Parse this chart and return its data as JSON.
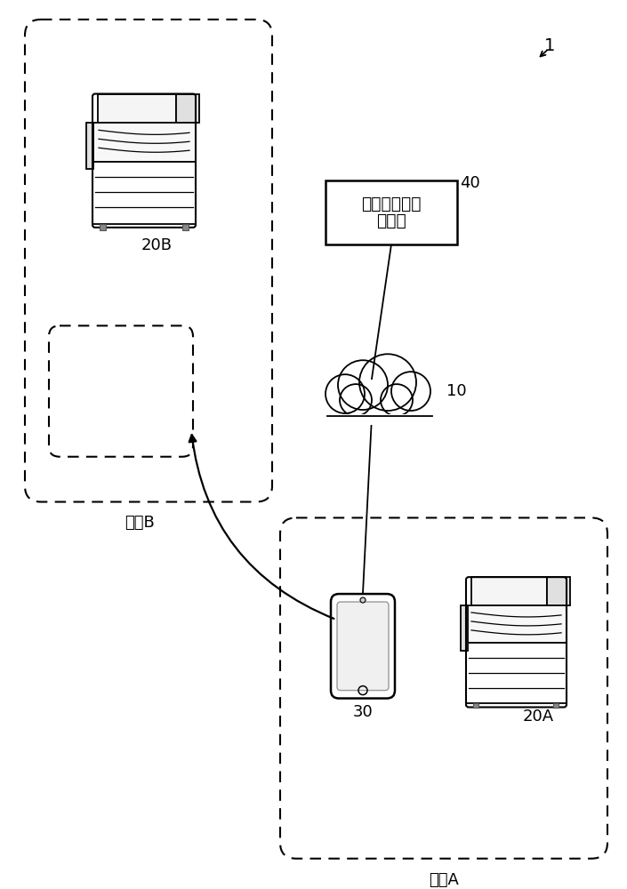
{
  "bg_color": "#ffffff",
  "fig_label": "1",
  "server_label": "40",
  "cloud_label": "10",
  "phone_label": "30",
  "printer_a_label": "20A",
  "printer_b_label": "20B",
  "location_a_label": "地点A",
  "location_b_label": "地点B",
  "server_text_line1": "参数设定辅助",
  "server_text_line2": "服务器"
}
